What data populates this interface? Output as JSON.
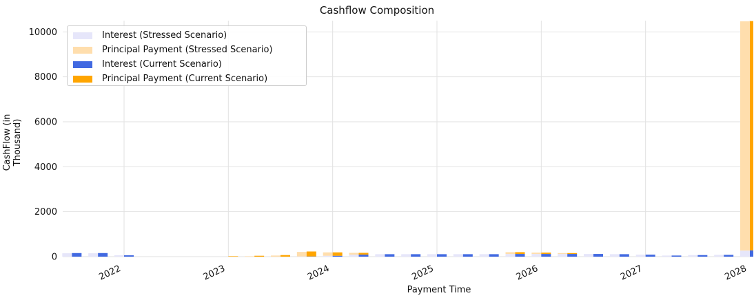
{
  "chart_data": {
    "type": "bar",
    "title": "Cashflow Composition",
    "xlabel": "Payment Time",
    "ylabel": "CashFlow (in Thousand)",
    "ylim": [
      0,
      10500
    ],
    "yticks": [
      "0",
      "2000",
      "4000",
      "6000",
      "8000",
      "10000"
    ],
    "xticks": [
      "2022",
      "2023",
      "2024",
      "2025",
      "2026",
      "2027",
      "2028"
    ],
    "grid": true,
    "legend_position": "top-left",
    "stacked": true,
    "categories": [
      "2021-07",
      "2021-10",
      "2022-01",
      "2022-04",
      "2022-07",
      "2022-10",
      "2023-01",
      "2023-04",
      "2023-07",
      "2023-10",
      "2024-01",
      "2024-04",
      "2024-07",
      "2024-10",
      "2025-01",
      "2025-04",
      "2025-07",
      "2025-10",
      "2026-01",
      "2026-04",
      "2026-07",
      "2026-10",
      "2027-01",
      "2027-04",
      "2027-07",
      "2027-10",
      "2028-01"
    ],
    "series": [
      {
        "name": "Interest (Stressed Scenario)",
        "color": "#e6e6fa",
        "group": "stressed",
        "values": [
          150,
          150,
          60,
          0,
          0,
          0,
          0,
          0,
          0,
          10,
          40,
          90,
          110,
          110,
          110,
          110,
          110,
          120,
          120,
          120,
          120,
          110,
          90,
          50,
          70,
          80,
          270
        ]
      },
      {
        "name": "Principal Payment (Stressed Scenario)",
        "color": "#ffdead",
        "group": "stressed",
        "values": [
          0,
          0,
          0,
          0,
          0,
          0,
          0,
          20,
          50,
          200,
          150,
          80,
          0,
          0,
          0,
          0,
          0,
          80,
          60,
          40,
          0,
          0,
          0,
          0,
          0,
          0,
          10200
        ]
      },
      {
        "name": "Interest (Current Scenario)",
        "color": "#4169e1",
        "group": "current",
        "values": [
          160,
          160,
          60,
          0,
          0,
          0,
          0,
          0,
          0,
          10,
          40,
          90,
          110,
          110,
          110,
          110,
          110,
          120,
          120,
          120,
          120,
          110,
          90,
          50,
          70,
          80,
          280
        ]
      },
      {
        "name": "Principal Payment (Current Scenario)",
        "color": "#ffa500",
        "group": "current",
        "values": [
          0,
          0,
          0,
          0,
          0,
          0,
          20,
          40,
          70,
          220,
          150,
          80,
          0,
          0,
          0,
          0,
          0,
          80,
          60,
          40,
          0,
          0,
          0,
          0,
          0,
          0,
          10200
        ]
      }
    ]
  }
}
